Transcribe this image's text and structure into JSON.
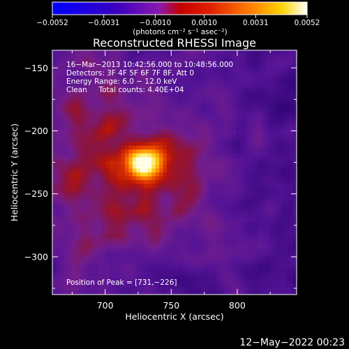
{
  "chart_data": {
    "type": "heatmap",
    "title": "Reconstructed RHESSI Image",
    "xlabel": "Heliocentric X (arcsec)",
    "ylabel": "Heliocentric Y (arcsec)",
    "xlim": [
      660,
      845
    ],
    "ylim": [
      -330,
      -136
    ],
    "x_ticks": [
      700,
      750,
      800
    ],
    "x_tick_labels": [
      "700",
      "750",
      "800"
    ],
    "y_ticks": [
      -150,
      -200,
      -250,
      -300
    ],
    "y_tick_labels": [
      "−150",
      "−200",
      "−250",
      "−300"
    ],
    "info_lines": [
      "16−Mar−2013 10:42:56.000 to 10:48:56.000",
      "Detectors: 3F 4F 5F 6F 7F 8F, Att 0",
      "Energy Range: 6.0 − 12.0 keV",
      "Clean     Total counts: 4.40E+04"
    ],
    "peak_label": "Position of Peak = [731,−226]",
    "peak": [
      731,
      -226
    ],
    "colorbar": {
      "range": [
        -0.0052,
        0.0052
      ],
      "ticks": [
        -0.0052,
        -0.0031,
        -0.001,
        0.001,
        0.0031,
        0.0052
      ],
      "tick_labels": [
        "−0.0052",
        "−0.0031",
        "−0.0010",
        "0.0010",
        "0.0031",
        "0.0052"
      ],
      "units_label": "(photons cm⁻² s⁻¹ asec⁻²)",
      "colors": [
        "#0000ff",
        "#5a00c8",
        "#9a1ab0",
        "#d00000",
        "#ff6a00",
        "#ffd000",
        "#ffffff"
      ]
    }
  },
  "footer": {
    "timestamp": "12−May−2022 00:23"
  }
}
